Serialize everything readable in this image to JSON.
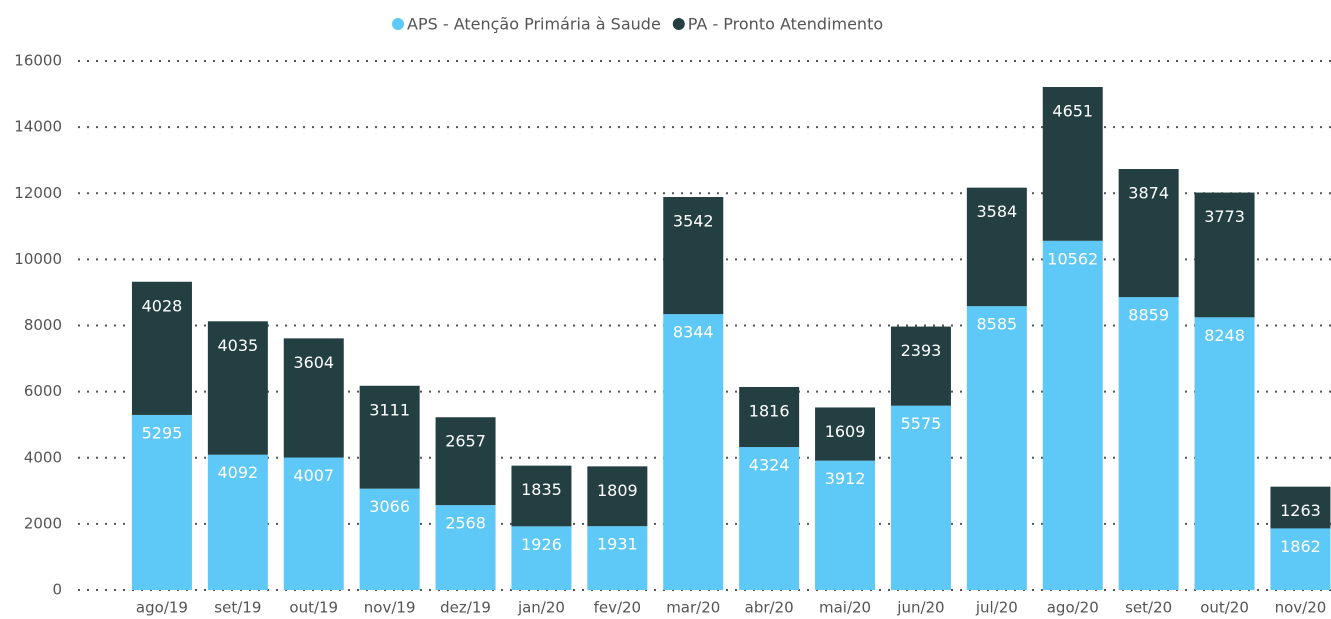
{
  "chart_data": {
    "type": "stacked_bar",
    "categories": [
      "ago/19",
      "set/19",
      "out/19",
      "nov/19",
      "dez/19",
      "jan/20",
      "fev/20",
      "mar/20",
      "abr/20",
      "mai/20",
      "jun/20",
      "jul/20",
      "ago/20",
      "set/20",
      "out/20",
      "nov/20"
    ],
    "series": [
      {
        "name": "APS - Atenção Primária à Saude",
        "color": "#5ec8f6",
        "values": [
          5295,
          4092,
          4007,
          3066,
          2568,
          1926,
          1931,
          8344,
          4324,
          3912,
          5575,
          8585,
          10562,
          8859,
          8248,
          1862
        ]
      },
      {
        "name": "PA - Pronto Atendimento",
        "color": "#233f42",
        "values": [
          4028,
          4035,
          3604,
          3111,
          2657,
          1835,
          1809,
          3542,
          1816,
          1609,
          2393,
          3584,
          4651,
          3874,
          3773,
          1263
        ]
      }
    ],
    "ylim": [
      0,
      16000
    ],
    "yticks": [
      0,
      2000,
      4000,
      6000,
      8000,
      10000,
      12000,
      14000,
      16000
    ],
    "grid": true,
    "legend": "top"
  }
}
